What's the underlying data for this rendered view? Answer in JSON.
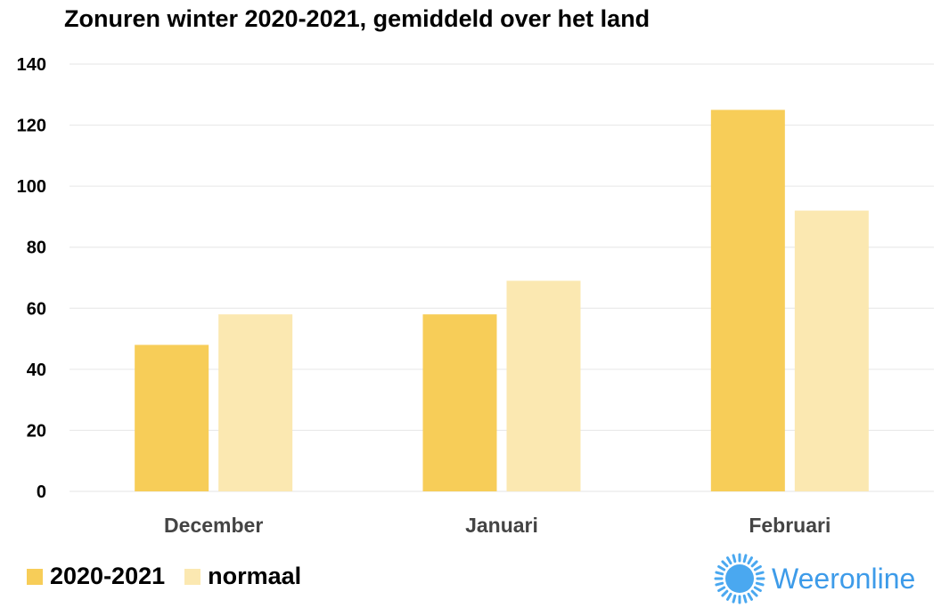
{
  "chart_data": {
    "type": "bar",
    "title": "Zonuren winter 2020-2021, gemiddeld over het land",
    "xlabel": "",
    "ylabel": "",
    "categories": [
      "December",
      "Januari",
      "Februari"
    ],
    "series": [
      {
        "name": "2020-2021",
        "values": [
          48,
          58,
          125
        ],
        "color": "#f7cd58"
      },
      {
        "name": "normaal",
        "values": [
          58,
          69,
          92
        ],
        "color": "#fbe8b1"
      }
    ],
    "ylim": [
      0,
      140
    ],
    "yticks": [
      0,
      20,
      40,
      60,
      80,
      100,
      120,
      140
    ],
    "grid": true,
    "legend_position": "bottom-left"
  },
  "brand": {
    "name": "Weeronline",
    "icon": "sun-logo-icon",
    "color": "#3d9be9"
  }
}
